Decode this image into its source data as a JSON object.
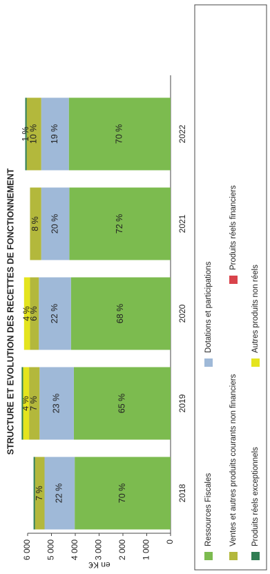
{
  "chart_data": {
    "type": "stacked_bar",
    "title": "STRUCTURE ET EVOLUTION DES RECETTES DE FONCTIONNEMENT",
    "y_label": "en K€",
    "categories": [
      "2018",
      "2019",
      "2020",
      "2021",
      "2022"
    ],
    "ylim": [
      0,
      6000
    ],
    "yticks": [
      0,
      {
        "value": 1000,
        "label": "1 000"
      },
      {
        "value": 2000,
        "label": "2 000"
      },
      {
        "value": 3000,
        "label": "3 000"
      },
      {
        "value": 4000,
        "label": "4 000"
      },
      {
        "value": 5000,
        "label": "5 000"
      },
      {
        "value": 6000,
        "label": "6 000"
      }
    ],
    "series": [
      {
        "name": "Ressources Fiscales",
        "color": "#7cbb4f",
        "values": [
          4025,
          4060,
          4180,
          4250,
          4270
        ],
        "data_labels": [
          "70 %",
          "65 %",
          "68 %",
          "72 %",
          "70 %"
        ]
      },
      {
        "name": "Dotations et participations",
        "color": "#9fb9d8",
        "values": [
          1265,
          1440,
          1350,
          1180,
          1160
        ],
        "data_labels": [
          "22 %",
          "23 %",
          "22 %",
          "20 %",
          "19 %"
        ]
      },
      {
        "name": "Ventes et autres produits courants non financiers",
        "color": "#b3b83c",
        "values": [
          400,
          440,
          370,
          470,
          610
        ],
        "data_labels": [
          "7 %",
          "7 %",
          "6 %",
          "8 %",
          "10 %"
        ]
      },
      {
        "name": "Autres produits non réels",
        "color": "#e4e41e",
        "values": [
          0,
          250,
          250,
          0,
          0
        ],
        "data_labels": [
          null,
          "4 %",
          "4 %",
          null,
          null
        ]
      },
      {
        "name": "Produits réels exceptionnels",
        "color": "#2f7d52",
        "values": [
          60,
          60,
          0,
          0,
          60
        ],
        "data_labels": [
          null,
          null,
          null,
          null,
          "1 %"
        ]
      },
      {
        "name": "Produits réels financiers",
        "color": "#d9434b",
        "values": [
          0,
          0,
          0,
          0,
          0
        ],
        "data_labels": [
          null,
          null,
          null,
          null,
          null
        ]
      }
    ]
  }
}
